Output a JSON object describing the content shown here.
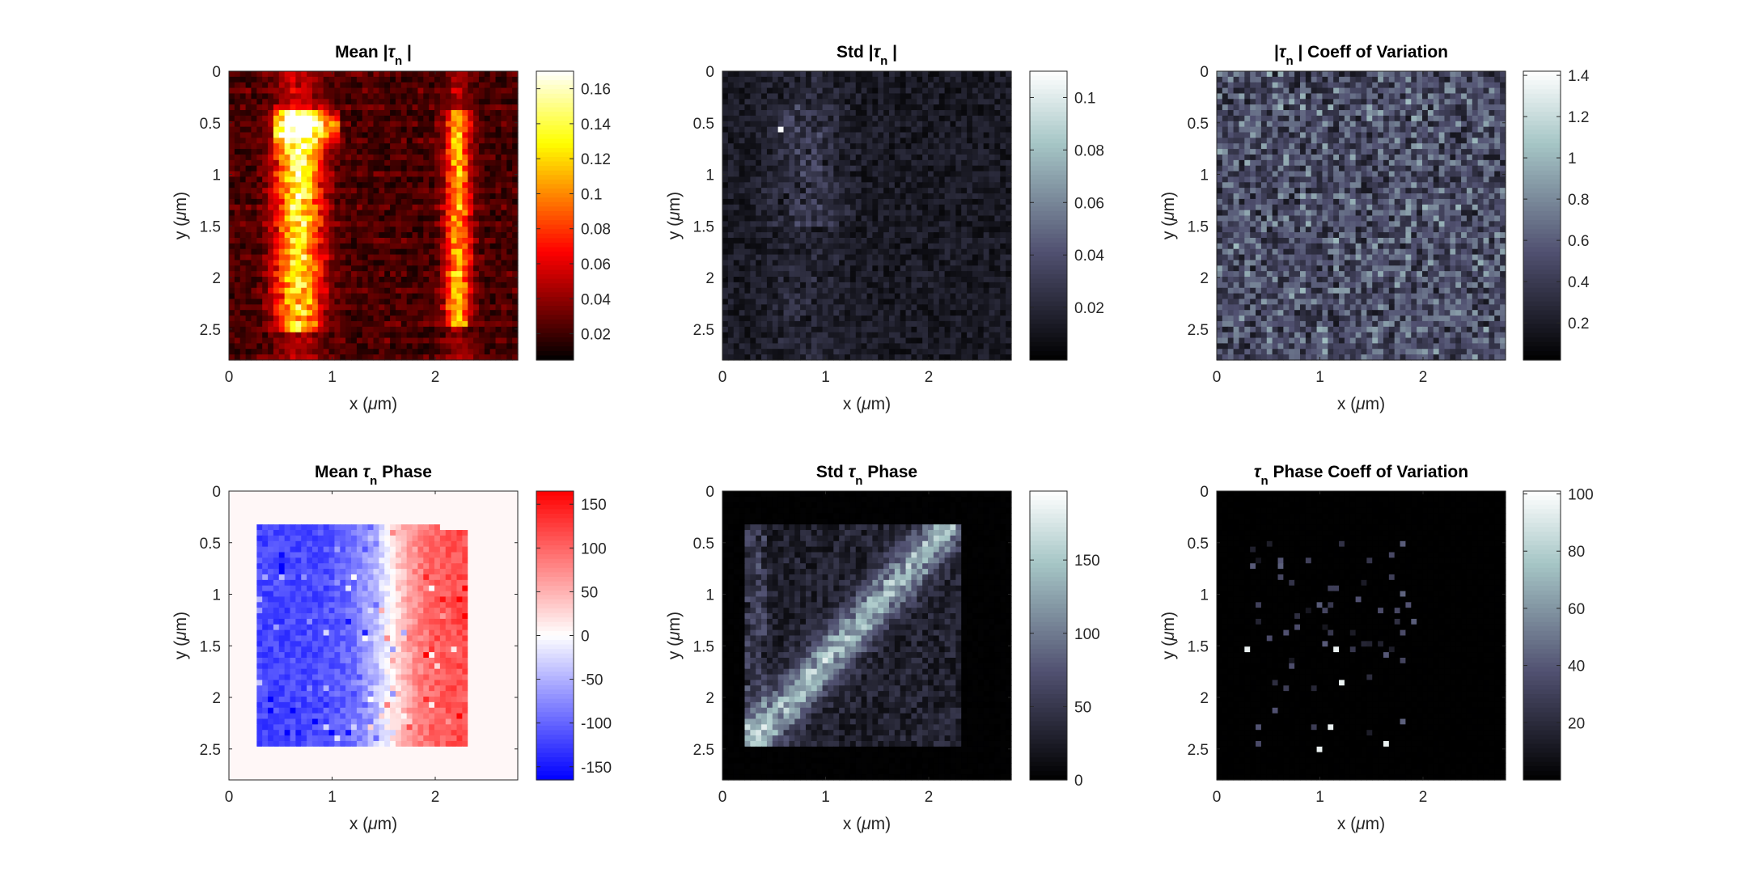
{
  "chart_data": [
    {
      "type": "heatmap",
      "title_parts": [
        "Mean |",
        "τ",
        "n",
        " |"
      ],
      "xlabel_parts": [
        "x (",
        "μ",
        "m)"
      ],
      "ylabel_parts": [
        "y (",
        "μ",
        "m)"
      ],
      "x_ticks": [
        "0",
        "1",
        "2"
      ],
      "y_ticks": [
        "0",
        "0.5",
        "1",
        "1.5",
        "2",
        "2.5"
      ],
      "xlim": [
        0,
        2.8
      ],
      "ylim": [
        0,
        2.8
      ],
      "colormap": "hot",
      "color_range": [
        0.005,
        0.17
      ],
      "colorbar_ticks": [
        "0.02",
        "0.04",
        "0.06",
        "0.08",
        "0.1",
        "0.12",
        "0.14",
        "0.16"
      ],
      "colorbar_values": [
        0.02,
        0.04,
        0.06,
        0.08,
        0.1,
        0.12,
        0.14,
        0.16
      ]
    },
    {
      "type": "heatmap",
      "title_parts": [
        "Std |",
        "τ",
        "n",
        " |"
      ],
      "xlabel_parts": [
        "x (",
        "μ",
        "m)"
      ],
      "ylabel_parts": [
        "y (",
        "μ",
        "m)"
      ],
      "x_ticks": [
        "0",
        "1",
        "2"
      ],
      "y_ticks": [
        "0",
        "0.5",
        "1",
        "1.5",
        "2",
        "2.5"
      ],
      "xlim": [
        0,
        2.8
      ],
      "ylim": [
        0,
        2.8
      ],
      "colormap": "bone",
      "color_range": [
        0.0,
        0.11
      ],
      "colorbar_ticks": [
        "0.02",
        "0.04",
        "0.06",
        "0.08",
        "0.1"
      ],
      "colorbar_values": [
        0.02,
        0.04,
        0.06,
        0.08,
        0.1
      ]
    },
    {
      "type": "heatmap",
      "title_parts": [
        "|",
        "τ",
        "n",
        " | Coeff of Variation"
      ],
      "xlabel_parts": [
        "x (",
        "μ",
        "m)"
      ],
      "ylabel_parts": [
        "y (",
        "μ",
        "m)"
      ],
      "x_ticks": [
        "0",
        "1",
        "2"
      ],
      "y_ticks": [
        "0",
        "0.5",
        "1",
        "1.5",
        "2",
        "2.5"
      ],
      "xlim": [
        0,
        2.8
      ],
      "ylim": [
        0,
        2.8
      ],
      "colormap": "bone",
      "color_range": [
        0.02,
        1.42
      ],
      "colorbar_ticks": [
        "0.2",
        "0.4",
        "0.6",
        "0.8",
        "1",
        "1.2",
        "1.4"
      ],
      "colorbar_values": [
        0.2,
        0.4,
        0.6,
        0.8,
        1.0,
        1.2,
        1.4
      ]
    },
    {
      "type": "heatmap",
      "title_parts": [
        "Mean ",
        "τ",
        "n",
        " Phase"
      ],
      "xlabel_parts": [
        "x (",
        "μ",
        "m)"
      ],
      "ylabel_parts": [
        "y (",
        "μ",
        "m)"
      ],
      "x_ticks": [
        "0",
        "1",
        "2"
      ],
      "y_ticks": [
        "0",
        "0.5",
        "1",
        "1.5",
        "2",
        "2.5"
      ],
      "xlim": [
        0,
        2.8
      ],
      "ylim": [
        0,
        2.8
      ],
      "colormap": "blue-white-red",
      "color_range": [
        -165,
        165
      ],
      "colorbar_ticks": [
        "-150",
        "-100",
        "-50",
        "0",
        "50",
        "100",
        "150"
      ],
      "colorbar_values": [
        -150,
        -100,
        -50,
        0,
        50,
        100,
        150
      ]
    },
    {
      "type": "heatmap",
      "title_parts": [
        "Std ",
        "τ",
        "n",
        " Phase"
      ],
      "xlabel_parts": [
        "x (",
        "μ",
        "m)"
      ],
      "ylabel_parts": [
        "y (",
        "μ",
        "m)"
      ],
      "x_ticks": [
        "0",
        "1",
        "2"
      ],
      "y_ticks": [
        "0",
        "0.5",
        "1",
        "1.5",
        "2",
        "2.5"
      ],
      "xlim": [
        0,
        2.8
      ],
      "ylim": [
        0,
        2.8
      ],
      "colormap": "bone",
      "color_range": [
        0,
        197
      ],
      "colorbar_ticks": [
        "0",
        "50",
        "100",
        "150"
      ],
      "colorbar_values": [
        0,
        50,
        100,
        150
      ]
    },
    {
      "type": "heatmap",
      "title_parts": [
        "",
        "τ",
        "n",
        " Phase Coeff of Variation"
      ],
      "xlabel_parts": [
        "x (",
        "μ",
        "m)"
      ],
      "ylabel_parts": [
        "y (",
        "μ",
        "m)"
      ],
      "x_ticks": [
        "0",
        "1",
        "2"
      ],
      "y_ticks": [
        "0",
        "0.5",
        "1",
        "1.5",
        "2",
        "2.5"
      ],
      "xlim": [
        0,
        2.8
      ],
      "ylim": [
        0,
        2.8
      ],
      "colormap": "bone",
      "color_range": [
        0,
        101
      ],
      "colorbar_ticks": [
        "20",
        "40",
        "60",
        "80",
        "100"
      ],
      "colorbar_values": [
        20,
        40,
        60,
        80,
        100
      ]
    }
  ]
}
